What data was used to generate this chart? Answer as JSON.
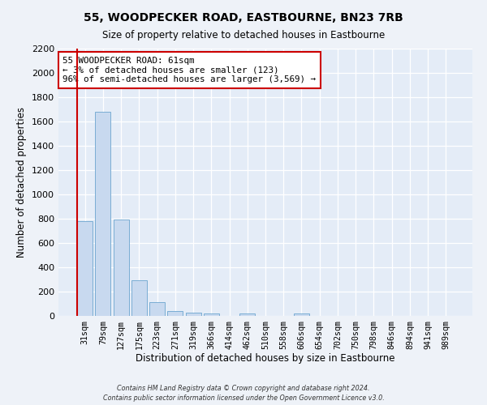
{
  "title": "55, WOODPECKER ROAD, EASTBOURNE, BN23 7RB",
  "subtitle": "Size of property relative to detached houses in Eastbourne",
  "xlabel": "Distribution of detached houses by size in Eastbourne",
  "ylabel": "Number of detached properties",
  "categories": [
    "31sqm",
    "79sqm",
    "127sqm",
    "175sqm",
    "223sqm",
    "271sqm",
    "319sqm",
    "366sqm",
    "414sqm",
    "462sqm",
    "510sqm",
    "558sqm",
    "606sqm",
    "654sqm",
    "702sqm",
    "750sqm",
    "798sqm",
    "846sqm",
    "894sqm",
    "941sqm",
    "989sqm"
  ],
  "values": [
    780,
    1680,
    795,
    295,
    113,
    38,
    25,
    20,
    0,
    20,
    0,
    0,
    20,
    0,
    0,
    0,
    0,
    0,
    0,
    0,
    0
  ],
  "bar_color": "#c8d9ef",
  "bar_edge_color": "#7aadd4",
  "vline_color": "#cc0000",
  "annotation_line1": "55 WOODPECKER ROAD: 61sqm",
  "annotation_line2": "← 3% of detached houses are smaller (123)",
  "annotation_line3": "96% of semi-detached houses are larger (3,569) →",
  "annotation_box_color": "#cc0000",
  "ylim": [
    0,
    2200
  ],
  "yticks": [
    0,
    200,
    400,
    600,
    800,
    1000,
    1200,
    1400,
    1600,
    1800,
    2000,
    2200
  ],
  "footer1": "Contains HM Land Registry data © Crown copyright and database right 2024.",
  "footer2": "Contains public sector information licensed under the Open Government Licence v3.0.",
  "bg_color": "#eef2f8",
  "plot_bg_color": "#e4ecf7"
}
